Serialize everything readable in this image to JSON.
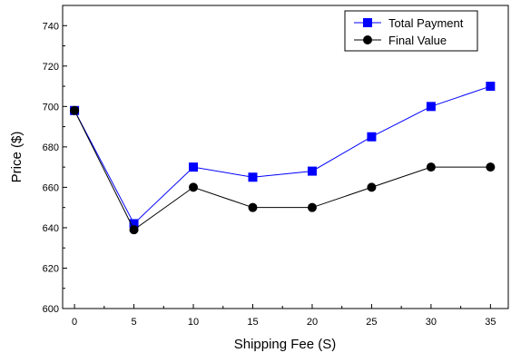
{
  "chart_data": {
    "type": "line",
    "title": "",
    "xlabel": "Shipping Fee (S)",
    "ylabel": "Price ($)",
    "x": [
      0,
      5,
      10,
      15,
      20,
      25,
      30,
      35
    ],
    "xlim": [
      -1,
      36.5
    ],
    "ylim": [
      600,
      750
    ],
    "xticks": [
      0,
      5,
      10,
      15,
      20,
      25,
      30,
      35
    ],
    "yticks": [
      600,
      620,
      640,
      660,
      680,
      700,
      720,
      740
    ],
    "grid": false,
    "legend_position": "top-right",
    "series": [
      {
        "name": "Total Payment",
        "values": [
          698,
          642,
          670,
          665,
          668,
          685,
          700,
          710
        ],
        "color": "#0000ff",
        "marker": "square"
      },
      {
        "name": "Final Value",
        "values": [
          698,
          639,
          660,
          650,
          650,
          660,
          670,
          670
        ],
        "color": "#000000",
        "marker": "circle"
      }
    ]
  }
}
